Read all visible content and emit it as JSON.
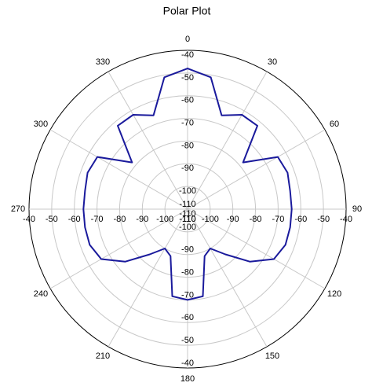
{
  "chart_data": {
    "type": "polar",
    "title": "Polar Plot",
    "theta": [
      0,
      10,
      20,
      30,
      40,
      50,
      60,
      70,
      80,
      90,
      100,
      110,
      120,
      130,
      140,
      150,
      160,
      170,
      180,
      190,
      200,
      210,
      220,
      230,
      240,
      250,
      260,
      270,
      280,
      290,
      300,
      310,
      320,
      330,
      340,
      350
    ],
    "values": [
      -48,
      -51,
      -66,
      -62,
      -62,
      -78,
      -64,
      -63,
      -64,
      -64,
      -64,
      -64,
      -66,
      -74,
      -84,
      -90,
      -88,
      -71,
      -70,
      -71,
      -88,
      -90,
      -84,
      -74,
      -66,
      -64,
      -64,
      -64,
      -64,
      -63,
      -64,
      -78,
      -62,
      -62,
      -66,
      -51
    ],
    "color": "#1a1a9c",
    "rlim": [
      -110,
      -40
    ],
    "rticks": [
      -110,
      -100,
      -90,
      -80,
      -70,
      -60,
      -50,
      -40
    ],
    "thetaticks": [
      0,
      30,
      60,
      90,
      120,
      150,
      180,
      210,
      240,
      270,
      300,
      330
    ],
    "grid": true
  }
}
